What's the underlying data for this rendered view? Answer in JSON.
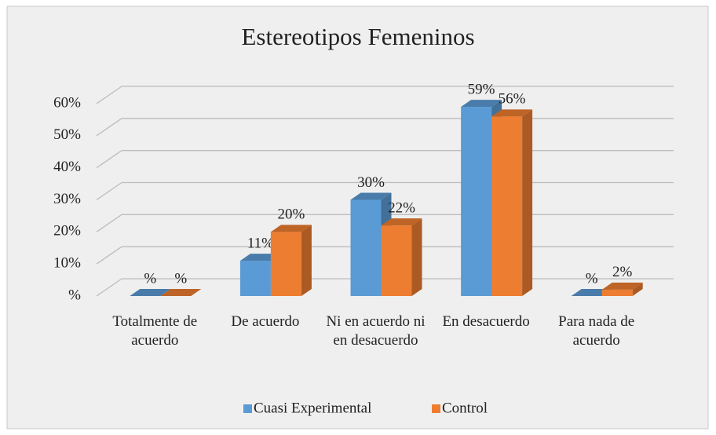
{
  "chart_data": {
    "type": "bar3d",
    "title": "Estereotipos Femeninos",
    "categories": [
      "Totalmente de acuerdo",
      "De acuerdo",
      "Ni en acuerdo ni en desacuerdo",
      "En desacuerdo",
      "Para nada de acuerdo"
    ],
    "series": [
      {
        "name": "Cuasi Experimental",
        "color": "#5b9bd5",
        "values": [
          0,
          11,
          30,
          59,
          0
        ],
        "value_labels": [
          "%",
          "11%",
          "30%",
          "59%",
          "%"
        ]
      },
      {
        "name": "Control",
        "color": "#ed7d31",
        "values": [
          0,
          20,
          22,
          56,
          2
        ],
        "value_labels": [
          "%",
          "20%",
          "22%",
          "56%",
          "2%"
        ]
      }
    ],
    "ylim": [
      0,
      60
    ],
    "yticks": [
      {
        "value": 0,
        "label": "%"
      },
      {
        "value": 10,
        "label": "10%"
      },
      {
        "value": 20,
        "label": "20%"
      },
      {
        "value": 30,
        "label": "30%"
      },
      {
        "value": 40,
        "label": "40%"
      },
      {
        "value": 50,
        "label": "50%"
      },
      {
        "value": 60,
        "label": "60%"
      }
    ],
    "grid": true,
    "legend": "bottom"
  }
}
